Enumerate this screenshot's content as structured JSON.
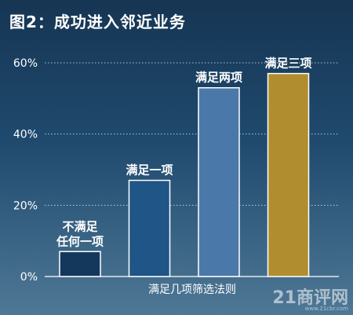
{
  "title": "图2：成功进入邻近业务",
  "chart_data": {
    "type": "bar",
    "title": "图2：成功进入邻近业务",
    "xlabel": "满足几项筛选法则",
    "ylabel": "",
    "ylim": [
      0,
      60
    ],
    "yticks": [
      0,
      20,
      40,
      60
    ],
    "ytick_labels": [
      "0%",
      "20%",
      "40%",
      "60%"
    ],
    "grid": true,
    "categories": [
      "不满足\n任何一项",
      "满足一项",
      "满足两项",
      "满足三项"
    ],
    "values": [
      7,
      27,
      53,
      57
    ],
    "colors": [
      "#13385c",
      "#1f5587",
      "#4a78a8",
      "#b08d2e"
    ]
  },
  "watermark": {
    "main": "21商评网",
    "sub": "www.21cbr.com"
  }
}
